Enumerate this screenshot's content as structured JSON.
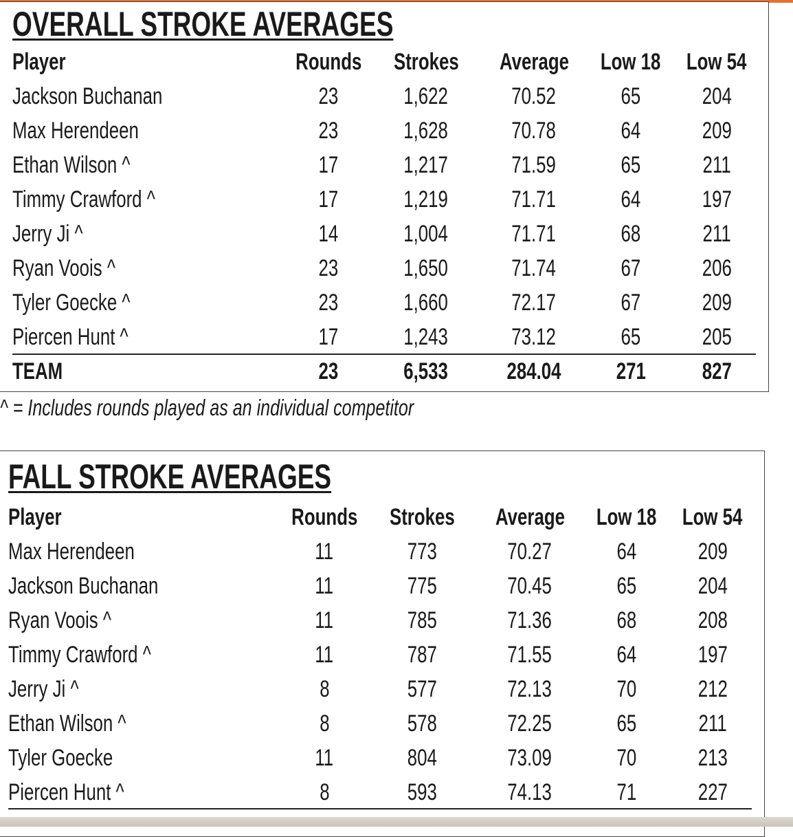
{
  "overall": {
    "title": "OVERALL STROKE AVERAGES",
    "columns": [
      "Player",
      "Rounds",
      "Strokes",
      "Average",
      "Low 18",
      "Low 54"
    ],
    "rows": [
      [
        "Jackson Buchanan",
        "23",
        "1,622",
        "70.52",
        "65",
        "204"
      ],
      [
        "Max Herendeen",
        "23",
        "1,628",
        "70.78",
        "64",
        "209"
      ],
      [
        "Ethan Wilson ^",
        "17",
        "1,217",
        "71.59",
        "65",
        "211"
      ],
      [
        "Timmy Crawford ^",
        "17",
        "1,219",
        "71.71",
        "64",
        "197"
      ],
      [
        "Jerry Ji ^",
        "14",
        "1,004",
        "71.71",
        "68",
        "211"
      ],
      [
        "Ryan Voois ^",
        "23",
        "1,650",
        "71.74",
        "67",
        "206"
      ],
      [
        "Tyler Goecke ^",
        "23",
        "1,660",
        "72.17",
        "67",
        "209"
      ],
      [
        "Piercen Hunt ^",
        "17",
        "1,243",
        "73.12",
        "65",
        "205"
      ]
    ],
    "team": [
      "TEAM",
      "23",
      "6,533",
      "284.04",
      "271",
      "827"
    ]
  },
  "footnote": "^ = Includes rounds played as an individual competitor",
  "fall": {
    "title": "FALL STROKE AVERAGES",
    "columns": [
      "Player",
      "Rounds",
      "Strokes",
      "Average",
      "Low 18",
      "Low 54"
    ],
    "rows": [
      [
        "Max Herendeen",
        "11",
        "773",
        "70.27",
        "64",
        "209"
      ],
      [
        "Jackson Buchanan",
        "11",
        "775",
        "70.45",
        "65",
        "204"
      ],
      [
        "Ryan Voois ^",
        "11",
        "785",
        "71.36",
        "68",
        "208"
      ],
      [
        "Timmy Crawford ^",
        "11",
        "787",
        "71.55",
        "64",
        "197"
      ],
      [
        "Jerry Ji ^",
        "8",
        "577",
        "72.13",
        "70",
        "212"
      ],
      [
        "Ethan Wilson ^",
        "8",
        "578",
        "72.25",
        "65",
        "211"
      ],
      [
        "Tyler Goecke",
        "11",
        "804",
        "73.09",
        "70",
        "213"
      ],
      [
        "Piercen Hunt ^",
        "8",
        "593",
        "74.13",
        "71",
        "227"
      ]
    ]
  }
}
